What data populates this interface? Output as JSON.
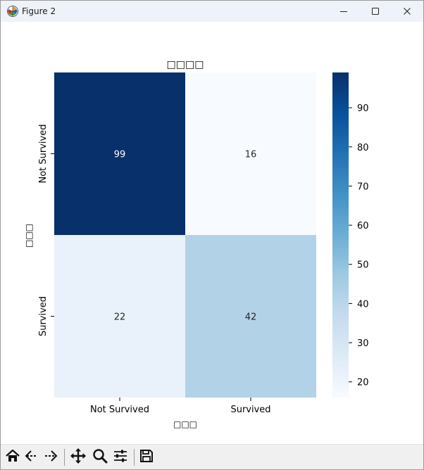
{
  "window": {
    "title": "Figure 2",
    "icons": [
      "matplotlib-logo-icon",
      "minimize-icon",
      "maximize-icon",
      "close-icon"
    ]
  },
  "toolbar": {
    "tools": [
      {
        "name": "home-icon",
        "tooltip": "Reset original view"
      },
      {
        "name": "back-icon",
        "tooltip": "Back to previous view"
      },
      {
        "name": "forward-icon",
        "tooltip": "Forward to next view"
      },
      {
        "name": "pan-icon",
        "tooltip": "Pan axes"
      },
      {
        "name": "zoom-icon",
        "tooltip": "Zoom to rectangle"
      },
      {
        "name": "configure-subplots-icon",
        "tooltip": "Configure subplots"
      },
      {
        "name": "save-icon",
        "tooltip": "Save the figure"
      }
    ]
  },
  "chart_data": {
    "type": "heatmap",
    "title": "□□□□",
    "xlabel": "□□□",
    "ylabel": "□□□",
    "x_categories": [
      "Not Survived",
      "Survived"
    ],
    "y_categories": [
      "Not Survived",
      "Survived"
    ],
    "values": [
      [
        99,
        16
      ],
      [
        22,
        42
      ]
    ],
    "annotations": [
      "99",
      "16",
      "22",
      "42"
    ],
    "colormap": "Blues",
    "colorbar": {
      "range": [
        16,
        99
      ],
      "ticks": [
        "20",
        "30",
        "40",
        "50",
        "60",
        "70",
        "80",
        "90"
      ]
    },
    "grid": false
  },
  "colors": {
    "titlebar": "#eef3f9",
    "toolbar": "#f0f0f0",
    "cmap_low": "#f7fbff",
    "cmap_high": "#08306b"
  }
}
